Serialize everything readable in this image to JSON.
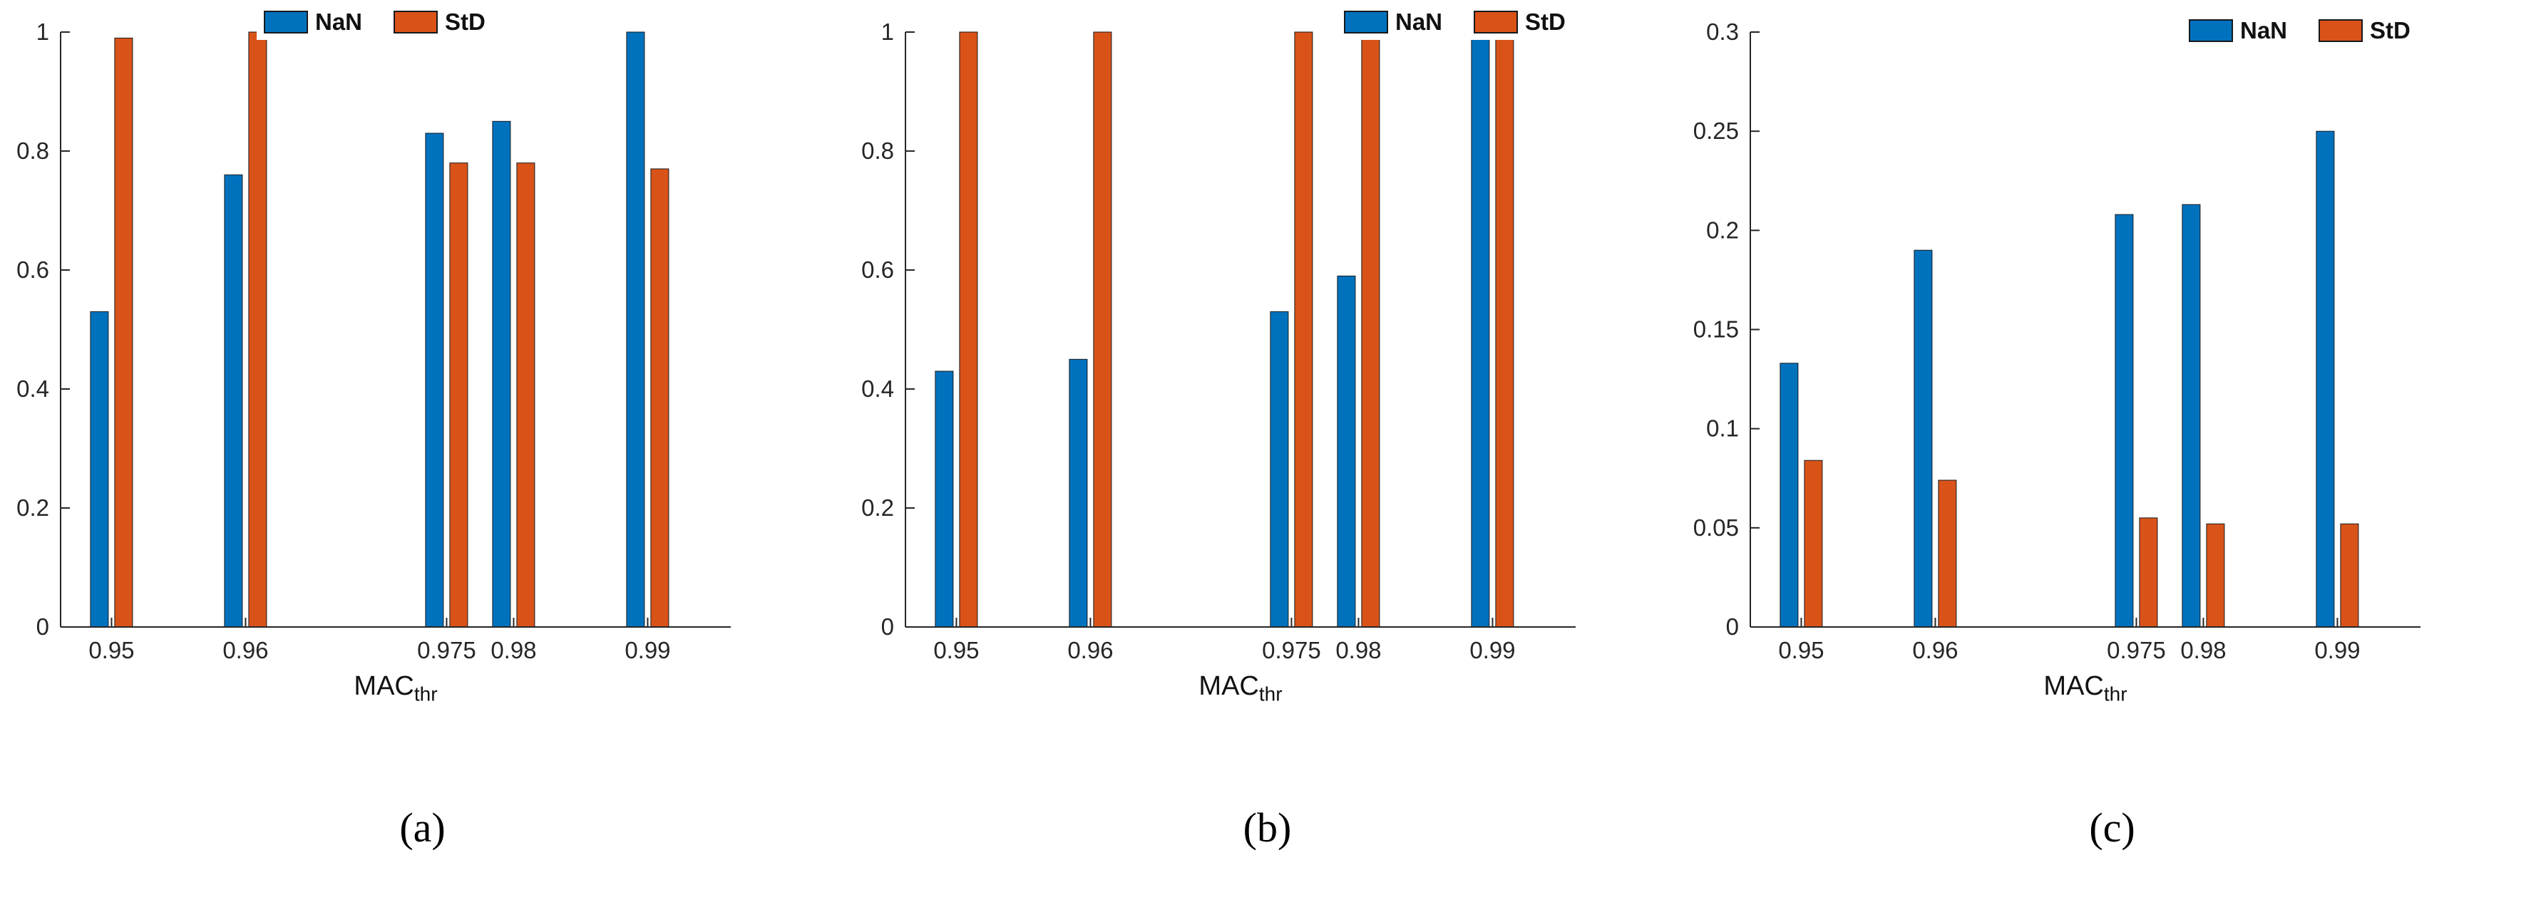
{
  "figure": {
    "background": "#ffffff",
    "axis_color": "#262626",
    "bar_edge_color": "#16191d"
  },
  "chart_data": [
    {
      "type": "bar",
      "caption": "(a)",
      "title": "",
      "xlabel": "MAC_thr",
      "xlabel_main": "MAC",
      "xlabel_sub": "thr",
      "ylabel": "",
      "grid": false,
      "legend_position": "top",
      "x": [
        0.95,
        0.96,
        0.975,
        0.98,
        0.99
      ],
      "xtick_labels": [
        "0.95",
        "0.96",
        "0.975",
        "0.98",
        "0.99"
      ],
      "xlim": [
        0.9462,
        0.9962
      ],
      "ylim": [
        0,
        1
      ],
      "yticks": [
        0,
        0.2,
        0.4,
        0.6,
        0.8,
        1
      ],
      "ytick_labels": [
        "0",
        "0.2",
        "0.4",
        "0.6",
        "0.8",
        "1"
      ],
      "series": [
        {
          "name": "NaN",
          "color": "#0072BD",
          "values": [
            0.53,
            0.76,
            0.83,
            0.85,
            1.0
          ]
        },
        {
          "name": "StD",
          "color": "#D95319",
          "values": [
            0.99,
            1.0,
            0.78,
            0.78,
            0.77
          ]
        }
      ]
    },
    {
      "type": "bar",
      "caption": "(b)",
      "title": "",
      "xlabel": "MAC_thr",
      "xlabel_main": "MAC",
      "xlabel_sub": "thr",
      "ylabel": "",
      "grid": false,
      "legend_position": "top",
      "x": [
        0.95,
        0.96,
        0.975,
        0.98,
        0.99
      ],
      "xtick_labels": [
        "0.95",
        "0.96",
        "0.975",
        "0.98",
        "0.99"
      ],
      "xlim": [
        0.9462,
        0.9962
      ],
      "ylim": [
        0,
        1
      ],
      "yticks": [
        0,
        0.2,
        0.4,
        0.6,
        0.8,
        1
      ],
      "ytick_labels": [
        "0",
        "0.2",
        "0.4",
        "0.6",
        "0.8",
        "1"
      ],
      "series": [
        {
          "name": "NaN",
          "color": "#0072BD",
          "values": [
            0.43,
            0.45,
            0.53,
            0.59,
            1.0
          ]
        },
        {
          "name": "StD",
          "color": "#D95319",
          "values": [
            1.0,
            1.0,
            1.0,
            1.0,
            1.0
          ]
        }
      ]
    },
    {
      "type": "bar",
      "caption": "(c)",
      "title": "",
      "xlabel": "MAC_thr",
      "xlabel_main": "MAC",
      "xlabel_sub": "thr",
      "ylabel": "",
      "grid": false,
      "legend_position": "top",
      "x": [
        0.95,
        0.96,
        0.975,
        0.98,
        0.99
      ],
      "xtick_labels": [
        "0.95",
        "0.96",
        "0.975",
        "0.98",
        "0.99"
      ],
      "xlim": [
        0.9462,
        0.9962
      ],
      "ylim": [
        0,
        0.3
      ],
      "yticks": [
        0,
        0.05,
        0.1,
        0.15,
        0.2,
        0.25,
        0.3
      ],
      "ytick_labels": [
        "0",
        "0.05",
        "0.1",
        "0.15",
        "0.2",
        "0.25",
        "0.3"
      ],
      "series": [
        {
          "name": "NaN",
          "color": "#0072BD",
          "values": [
            0.133,
            0.19,
            0.208,
            0.213,
            0.25
          ]
        },
        {
          "name": "StD",
          "color": "#D95319",
          "values": [
            0.084,
            0.074,
            0.055,
            0.052,
            0.052
          ]
        }
      ]
    }
  ]
}
